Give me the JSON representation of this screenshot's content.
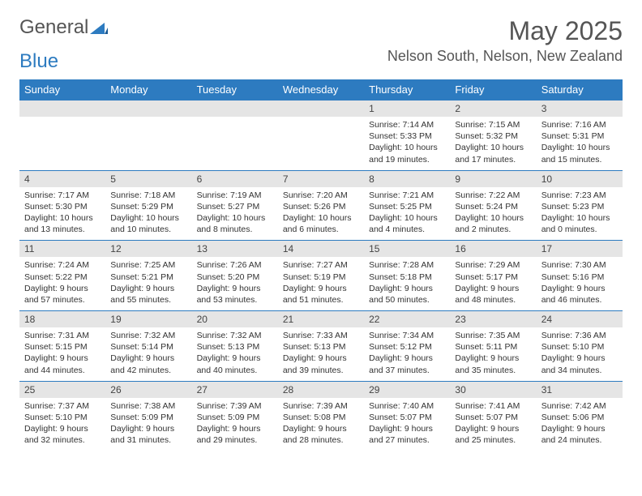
{
  "logo": {
    "text_gray": "General",
    "text_blue": "Blue"
  },
  "title": "May 2025",
  "location": "Nelson South, Nelson, New Zealand",
  "colors": {
    "header_bg": "#2d7bc0",
    "header_text": "#ffffff",
    "daynum_bg": "#e5e5e5",
    "border": "#2d7bc0",
    "text": "#333333"
  },
  "day_names": [
    "Sunday",
    "Monday",
    "Tuesday",
    "Wednesday",
    "Thursday",
    "Friday",
    "Saturday"
  ],
  "weeks": [
    [
      {
        "n": "",
        "sr": "",
        "ss": "",
        "dl": ""
      },
      {
        "n": "",
        "sr": "",
        "ss": "",
        "dl": ""
      },
      {
        "n": "",
        "sr": "",
        "ss": "",
        "dl": ""
      },
      {
        "n": "",
        "sr": "",
        "ss": "",
        "dl": ""
      },
      {
        "n": "1",
        "sr": "Sunrise: 7:14 AM",
        "ss": "Sunset: 5:33 PM",
        "dl": "Daylight: 10 hours and 19 minutes."
      },
      {
        "n": "2",
        "sr": "Sunrise: 7:15 AM",
        "ss": "Sunset: 5:32 PM",
        "dl": "Daylight: 10 hours and 17 minutes."
      },
      {
        "n": "3",
        "sr": "Sunrise: 7:16 AM",
        "ss": "Sunset: 5:31 PM",
        "dl": "Daylight: 10 hours and 15 minutes."
      }
    ],
    [
      {
        "n": "4",
        "sr": "Sunrise: 7:17 AM",
        "ss": "Sunset: 5:30 PM",
        "dl": "Daylight: 10 hours and 13 minutes."
      },
      {
        "n": "5",
        "sr": "Sunrise: 7:18 AM",
        "ss": "Sunset: 5:29 PM",
        "dl": "Daylight: 10 hours and 10 minutes."
      },
      {
        "n": "6",
        "sr": "Sunrise: 7:19 AM",
        "ss": "Sunset: 5:27 PM",
        "dl": "Daylight: 10 hours and 8 minutes."
      },
      {
        "n": "7",
        "sr": "Sunrise: 7:20 AM",
        "ss": "Sunset: 5:26 PM",
        "dl": "Daylight: 10 hours and 6 minutes."
      },
      {
        "n": "8",
        "sr": "Sunrise: 7:21 AM",
        "ss": "Sunset: 5:25 PM",
        "dl": "Daylight: 10 hours and 4 minutes."
      },
      {
        "n": "9",
        "sr": "Sunrise: 7:22 AM",
        "ss": "Sunset: 5:24 PM",
        "dl": "Daylight: 10 hours and 2 minutes."
      },
      {
        "n": "10",
        "sr": "Sunrise: 7:23 AM",
        "ss": "Sunset: 5:23 PM",
        "dl": "Daylight: 10 hours and 0 minutes."
      }
    ],
    [
      {
        "n": "11",
        "sr": "Sunrise: 7:24 AM",
        "ss": "Sunset: 5:22 PM",
        "dl": "Daylight: 9 hours and 57 minutes."
      },
      {
        "n": "12",
        "sr": "Sunrise: 7:25 AM",
        "ss": "Sunset: 5:21 PM",
        "dl": "Daylight: 9 hours and 55 minutes."
      },
      {
        "n": "13",
        "sr": "Sunrise: 7:26 AM",
        "ss": "Sunset: 5:20 PM",
        "dl": "Daylight: 9 hours and 53 minutes."
      },
      {
        "n": "14",
        "sr": "Sunrise: 7:27 AM",
        "ss": "Sunset: 5:19 PM",
        "dl": "Daylight: 9 hours and 51 minutes."
      },
      {
        "n": "15",
        "sr": "Sunrise: 7:28 AM",
        "ss": "Sunset: 5:18 PM",
        "dl": "Daylight: 9 hours and 50 minutes."
      },
      {
        "n": "16",
        "sr": "Sunrise: 7:29 AM",
        "ss": "Sunset: 5:17 PM",
        "dl": "Daylight: 9 hours and 48 minutes."
      },
      {
        "n": "17",
        "sr": "Sunrise: 7:30 AM",
        "ss": "Sunset: 5:16 PM",
        "dl": "Daylight: 9 hours and 46 minutes."
      }
    ],
    [
      {
        "n": "18",
        "sr": "Sunrise: 7:31 AM",
        "ss": "Sunset: 5:15 PM",
        "dl": "Daylight: 9 hours and 44 minutes."
      },
      {
        "n": "19",
        "sr": "Sunrise: 7:32 AM",
        "ss": "Sunset: 5:14 PM",
        "dl": "Daylight: 9 hours and 42 minutes."
      },
      {
        "n": "20",
        "sr": "Sunrise: 7:32 AM",
        "ss": "Sunset: 5:13 PM",
        "dl": "Daylight: 9 hours and 40 minutes."
      },
      {
        "n": "21",
        "sr": "Sunrise: 7:33 AM",
        "ss": "Sunset: 5:13 PM",
        "dl": "Daylight: 9 hours and 39 minutes."
      },
      {
        "n": "22",
        "sr": "Sunrise: 7:34 AM",
        "ss": "Sunset: 5:12 PM",
        "dl": "Daylight: 9 hours and 37 minutes."
      },
      {
        "n": "23",
        "sr": "Sunrise: 7:35 AM",
        "ss": "Sunset: 5:11 PM",
        "dl": "Daylight: 9 hours and 35 minutes."
      },
      {
        "n": "24",
        "sr": "Sunrise: 7:36 AM",
        "ss": "Sunset: 5:10 PM",
        "dl": "Daylight: 9 hours and 34 minutes."
      }
    ],
    [
      {
        "n": "25",
        "sr": "Sunrise: 7:37 AM",
        "ss": "Sunset: 5:10 PM",
        "dl": "Daylight: 9 hours and 32 minutes."
      },
      {
        "n": "26",
        "sr": "Sunrise: 7:38 AM",
        "ss": "Sunset: 5:09 PM",
        "dl": "Daylight: 9 hours and 31 minutes."
      },
      {
        "n": "27",
        "sr": "Sunrise: 7:39 AM",
        "ss": "Sunset: 5:09 PM",
        "dl": "Daylight: 9 hours and 29 minutes."
      },
      {
        "n": "28",
        "sr": "Sunrise: 7:39 AM",
        "ss": "Sunset: 5:08 PM",
        "dl": "Daylight: 9 hours and 28 minutes."
      },
      {
        "n": "29",
        "sr": "Sunrise: 7:40 AM",
        "ss": "Sunset: 5:07 PM",
        "dl": "Daylight: 9 hours and 27 minutes."
      },
      {
        "n": "30",
        "sr": "Sunrise: 7:41 AM",
        "ss": "Sunset: 5:07 PM",
        "dl": "Daylight: 9 hours and 25 minutes."
      },
      {
        "n": "31",
        "sr": "Sunrise: 7:42 AM",
        "ss": "Sunset: 5:06 PM",
        "dl": "Daylight: 9 hours and 24 minutes."
      }
    ]
  ]
}
